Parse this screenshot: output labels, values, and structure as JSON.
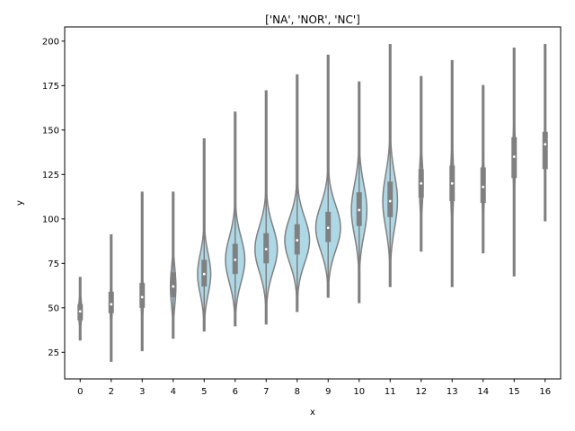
{
  "chart_data": {
    "type": "violin",
    "title": "['NA', 'NOR', 'NC']",
    "xlabel": "x",
    "ylabel": "y",
    "ylim": [
      10,
      208
    ],
    "y_ticks": [
      25,
      50,
      75,
      100,
      125,
      150,
      175,
      200
    ],
    "grid": false,
    "fill_color": "#add8e6",
    "line_color": "#808080",
    "median_color": "#ffffff",
    "categories": [
      "0",
      "2",
      "3",
      "4",
      "5",
      "6",
      "7",
      "8",
      "9",
      "10",
      "11",
      "12",
      "13",
      "14",
      "15",
      "16"
    ],
    "groups": [
      {
        "x": "0",
        "min": 32,
        "q1": 43,
        "median": 48,
        "q3": 52,
        "max": 67,
        "width": 0.04
      },
      {
        "x": "2",
        "min": 20,
        "q1": 47,
        "median": 52,
        "q3": 59,
        "max": 91,
        "width": 0.03
      },
      {
        "x": "3",
        "min": 26,
        "q1": 50,
        "median": 56,
        "q3": 64,
        "max": 115,
        "width": 0.03
      },
      {
        "x": "4",
        "min": 33,
        "q1": 56,
        "median": 62,
        "q3": 70,
        "max": 115,
        "width": 0.07
      },
      {
        "x": "5",
        "min": 37,
        "q1": 62,
        "median": 69,
        "q3": 77,
        "max": 145,
        "width": 0.17
      },
      {
        "x": "6",
        "min": 40,
        "q1": 69,
        "median": 77,
        "q3": 86,
        "max": 160,
        "width": 0.25
      },
      {
        "x": "7",
        "min": 41,
        "q1": 75,
        "median": 83,
        "q3": 92,
        "max": 172,
        "width": 0.29
      },
      {
        "x": "8",
        "min": 48,
        "q1": 80,
        "median": 88,
        "q3": 97,
        "max": 181,
        "width": 0.32
      },
      {
        "x": "9",
        "min": 56,
        "q1": 87,
        "median": 95,
        "q3": 104,
        "max": 192,
        "width": 0.32
      },
      {
        "x": "10",
        "min": 53,
        "q1": 96,
        "median": 105,
        "q3": 115,
        "max": 177,
        "width": 0.2
      },
      {
        "x": "11",
        "min": 62,
        "q1": 101,
        "median": 110,
        "q3": 121,
        "max": 198,
        "width": 0.19
      },
      {
        "x": "12",
        "min": 82,
        "q1": 112,
        "median": 120,
        "q3": 128,
        "max": 180,
        "width": 0.05
      },
      {
        "x": "13",
        "min": 62,
        "q1": 110,
        "median": 120,
        "q3": 130,
        "max": 189,
        "width": 0.04
      },
      {
        "x": "14",
        "min": 81,
        "q1": 109,
        "median": 118,
        "q3": 129,
        "max": 175,
        "width": 0.03
      },
      {
        "x": "15",
        "min": 68,
        "q1": 123,
        "median": 135,
        "q3": 146,
        "max": 196,
        "width": 0.03
      },
      {
        "x": "16",
        "min": 99,
        "q1": 128,
        "median": 142,
        "q3": 149,
        "max": 198,
        "width": 0.02
      }
    ]
  }
}
